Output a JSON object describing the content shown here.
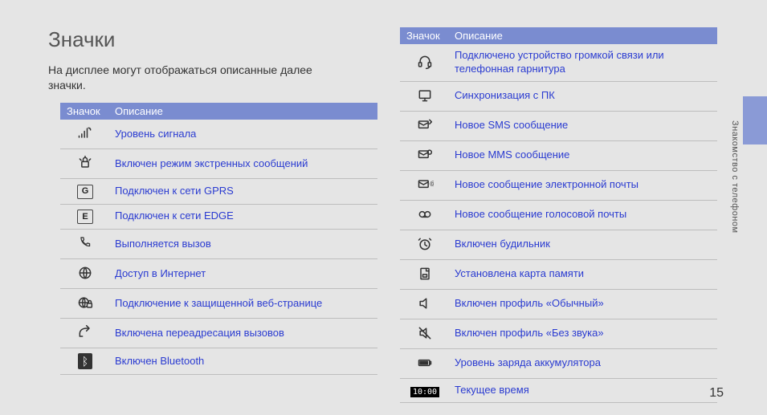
{
  "title": "Значки",
  "intro": "На дисплее могут отображаться описанные далее значки.",
  "side_label": "Знакомство с телефоном",
  "page_number": "15",
  "headers": {
    "icon": "Значок",
    "desc": "Описание"
  },
  "colors": {
    "header_bg": "#7a8cd0",
    "link": "#2a3bd1",
    "page_bg": "#e5e5e5",
    "rule": "#bdbdbd"
  },
  "left_rows": [
    {
      "icon": "signal",
      "desc": "Уровень сигнала"
    },
    {
      "icon": "siren",
      "desc": "Включен режим экстренных сообщений"
    },
    {
      "icon": "g-box",
      "desc": "Подключен к сети GPRS"
    },
    {
      "icon": "e-box",
      "desc": "Подключен к сети EDGE"
    },
    {
      "icon": "phone",
      "desc": "Выполняется вызов"
    },
    {
      "icon": "globe",
      "desc": "Доступ в Интернет"
    },
    {
      "icon": "globe-lock",
      "desc": "Подключение к защищенной веб-странице"
    },
    {
      "icon": "forward",
      "desc": "Включена переадресация вызовов"
    },
    {
      "icon": "bt",
      "desc": "Включен Bluetooth"
    }
  ],
  "right_rows": [
    {
      "icon": "headset",
      "desc": "Подключено устройство громкой связи или телефонная гарнитура"
    },
    {
      "icon": "pc",
      "desc": "Синхронизация с ПК"
    },
    {
      "icon": "sms",
      "desc": "Новое SMS сообщение"
    },
    {
      "icon": "mms",
      "desc": "Новое MMS сообщение"
    },
    {
      "icon": "email",
      "desc": "Новое сообщение электронной почты"
    },
    {
      "icon": "voicemail",
      "desc": "Новое сообщение голосовой почты"
    },
    {
      "icon": "alarm",
      "desc": "Включен будильник"
    },
    {
      "icon": "card",
      "desc": "Установлена карта памяти"
    },
    {
      "icon": "speaker",
      "desc": "Включен профиль «Обычный»"
    },
    {
      "icon": "mute",
      "desc": "Включен профиль «Без звука»"
    },
    {
      "icon": "battery",
      "desc": "Уровень заряда аккумулятора"
    },
    {
      "icon": "clock",
      "desc": "Текущее время",
      "clock_text": "10:00"
    }
  ]
}
